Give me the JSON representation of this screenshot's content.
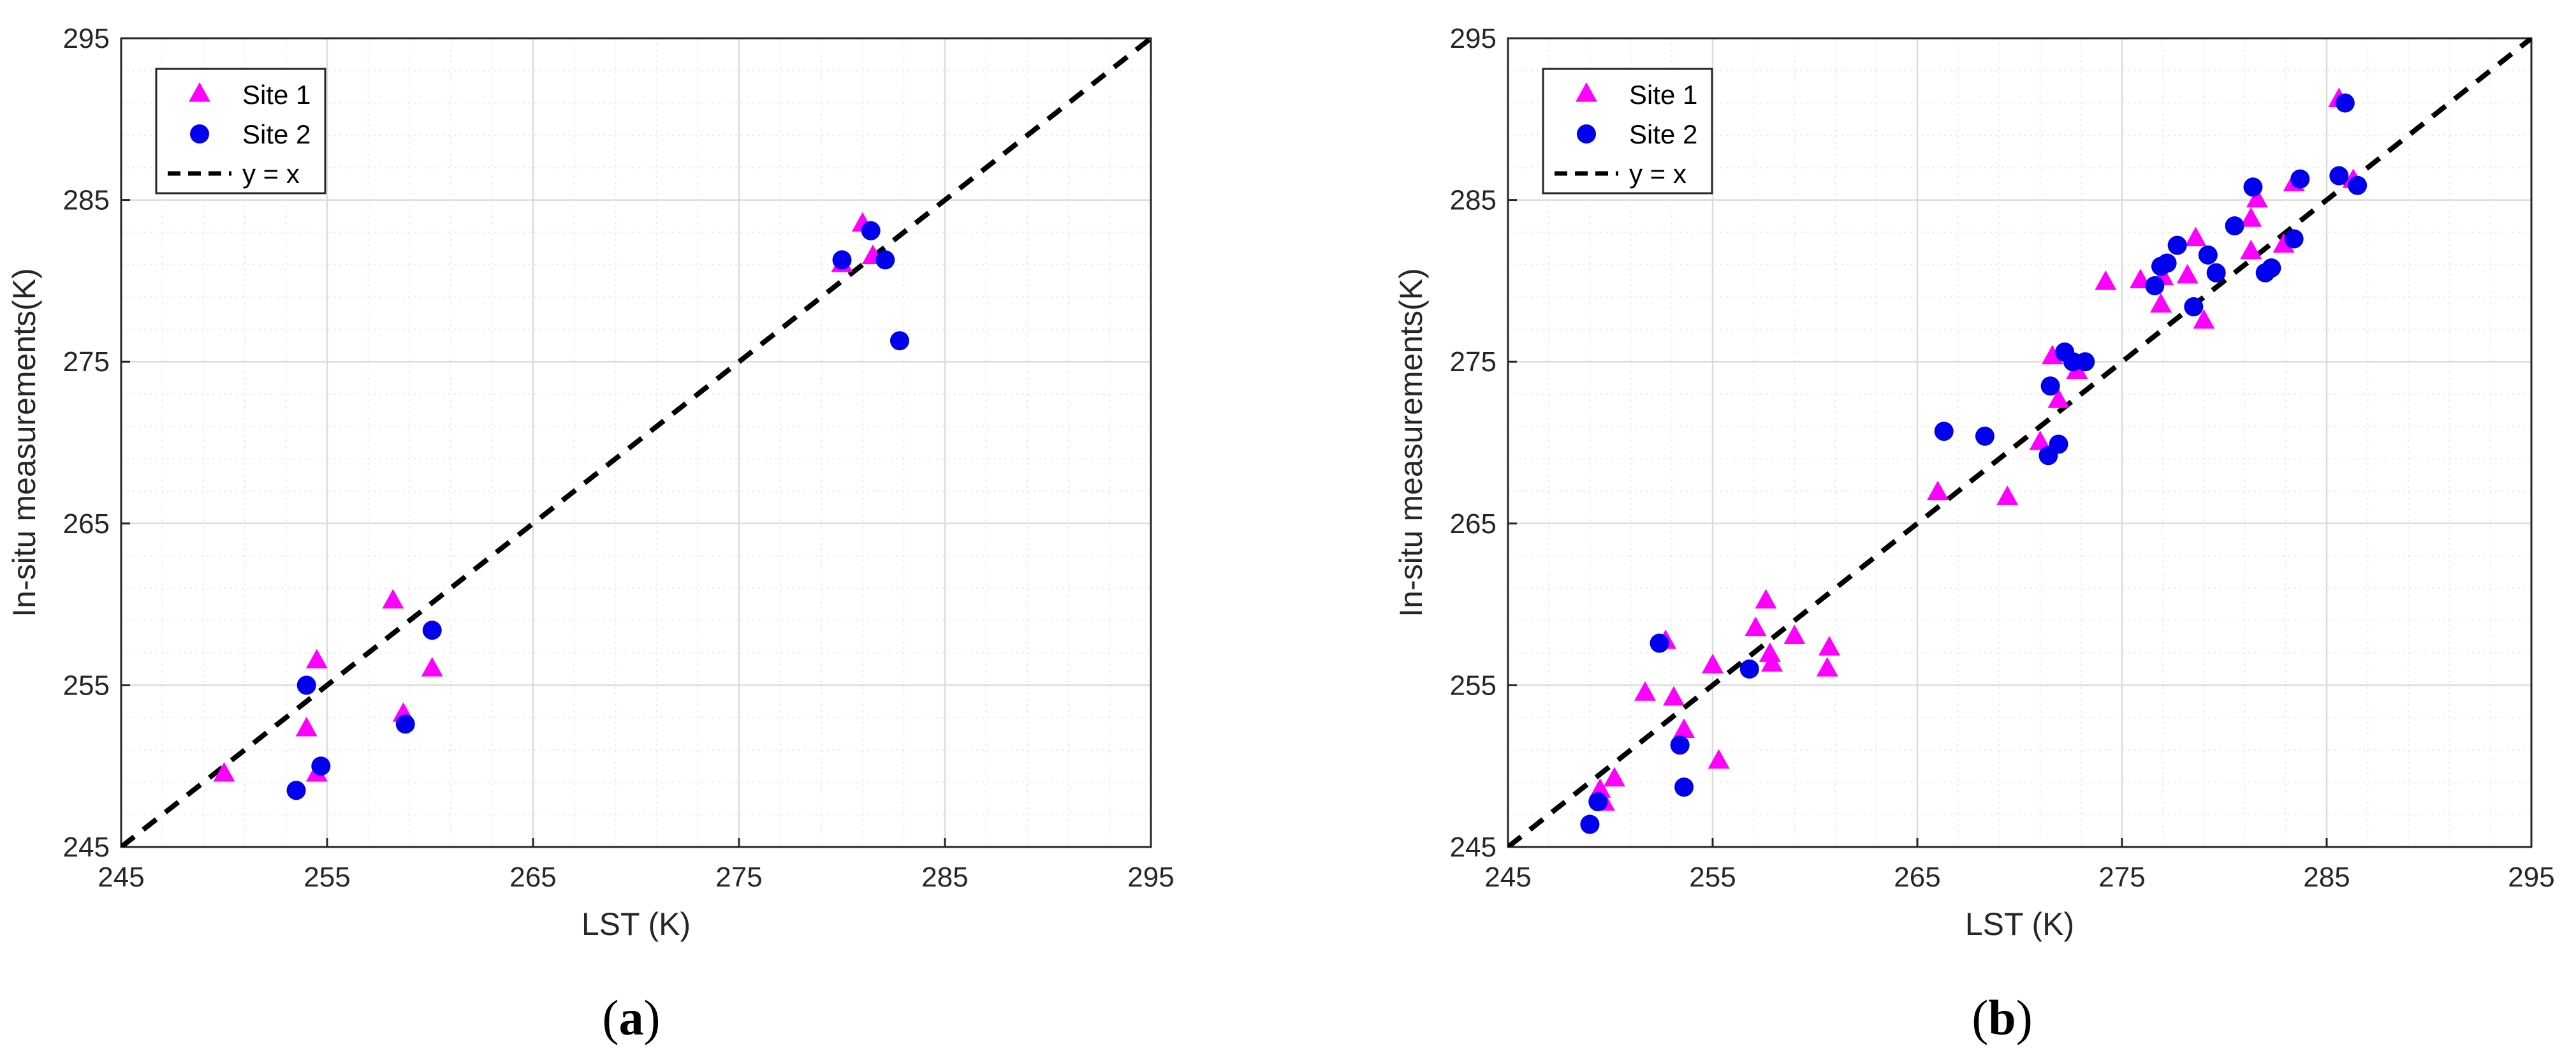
{
  "colors": {
    "site1": "#ff00ff",
    "site2": "#0000ee",
    "identity_line": "#000000",
    "grid": "#dcdcdc"
  },
  "chart_data": [
    {
      "type": "scatter",
      "panel_label": [
        "(",
        "a",
        ")"
      ],
      "xlabel": "LST (K)",
      "ylabel": "In-situ measurements(K)",
      "xlim": [
        245,
        295
      ],
      "ylim": [
        245,
        295
      ],
      "ticks": [
        245,
        255,
        265,
        275,
        285,
        295
      ],
      "grid": "on (major and minor)",
      "legend_placement": "top-left",
      "series": [
        {
          "name": "Site 1",
          "marker": "triangle",
          "color": "#ff00ff",
          "points": [
            [
              250.0,
              249.5
            ],
            [
              254.0,
              252.3
            ],
            [
              254.5,
              256.5
            ],
            [
              254.5,
              249.5
            ],
            [
              258.2,
              260.2
            ],
            [
              258.7,
              253.2
            ],
            [
              260.1,
              256.0
            ],
            [
              280.0,
              281.0
            ],
            [
              281.0,
              283.5
            ],
            [
              281.5,
              281.5
            ]
          ]
        },
        {
          "name": "Site 2",
          "marker": "circle",
          "color": "#0000ee",
          "points": [
            [
              253.5,
              248.5
            ],
            [
              254.0,
              255.0
            ],
            [
              254.7,
              250.0
            ],
            [
              258.8,
              252.6
            ],
            [
              260.1,
              258.4
            ],
            [
              280.0,
              281.3
            ],
            [
              281.4,
              283.1
            ],
            [
              282.1,
              281.3
            ],
            [
              282.8,
              276.3
            ]
          ]
        },
        {
          "name": "y = x",
          "marker": "dashed-line",
          "color": "#000000",
          "points": [
            [
              245,
              245
            ],
            [
              295,
              295
            ]
          ]
        }
      ]
    },
    {
      "type": "scatter",
      "panel_label": [
        "(",
        "b",
        ")"
      ],
      "xlabel": "LST (K)",
      "ylabel": "In-situ measurements(K)",
      "xlim": [
        245,
        295
      ],
      "ylim": [
        245,
        295
      ],
      "ticks": [
        245,
        255,
        265,
        275,
        285,
        295
      ],
      "grid": "on (major and minor)",
      "legend_placement": "top-left",
      "series": [
        {
          "name": "Site 1",
          "marker": "triangle",
          "color": "#ff00ff",
          "points": [
            [
              249.5,
              248.5
            ],
            [
              249.7,
              247.7
            ],
            [
              250.2,
              249.2
            ],
            [
              251.7,
              254.5
            ],
            [
              252.7,
              257.7
            ],
            [
              253.1,
              254.2
            ],
            [
              253.6,
              252.2
            ],
            [
              255.0,
              256.2
            ],
            [
              255.3,
              250.3
            ],
            [
              257.1,
              258.5
            ],
            [
              257.6,
              260.2
            ],
            [
              257.8,
              256.9
            ],
            [
              257.9,
              256.3
            ],
            [
              259.0,
              258.0
            ],
            [
              260.7,
              257.3
            ],
            [
              260.6,
              256.0
            ],
            [
              266.0,
              266.9
            ],
            [
              269.4,
              266.6
            ],
            [
              271.0,
              270.0
            ],
            [
              271.6,
              275.3
            ],
            [
              271.9,
              272.6
            ],
            [
              272.8,
              274.4
            ],
            [
              274.2,
              279.9
            ],
            [
              275.9,
              280.0
            ],
            [
              276.9,
              278.5
            ],
            [
              277.0,
              280.2
            ],
            [
              278.2,
              280.3
            ],
            [
              278.6,
              282.6
            ],
            [
              279.0,
              277.5
            ],
            [
              281.3,
              283.8
            ],
            [
              281.3,
              281.8
            ],
            [
              281.6,
              285.0
            ],
            [
              282.9,
              282.2
            ],
            [
              283.4,
              286.0
            ],
            [
              285.6,
              291.2
            ],
            [
              286.3,
              286.2
            ]
          ]
        },
        {
          "name": "Site 2",
          "marker": "circle",
          "color": "#0000ee",
          "points": [
            [
              249.0,
              246.4
            ],
            [
              249.4,
              247.8
            ],
            [
              252.4,
              257.6
            ],
            [
              253.4,
              251.3
            ],
            [
              253.6,
              248.7
            ],
            [
              256.8,
              256.0
            ],
            [
              266.3,
              270.7
            ],
            [
              268.3,
              270.4
            ],
            [
              271.4,
              269.2
            ],
            [
              271.5,
              273.5
            ],
            [
              271.9,
              269.9
            ],
            [
              272.2,
              275.6
            ],
            [
              272.6,
              275.0
            ],
            [
              273.2,
              275.0
            ],
            [
              276.6,
              279.7
            ],
            [
              276.9,
              280.9
            ],
            [
              277.2,
              281.1
            ],
            [
              277.7,
              282.2
            ],
            [
              278.5,
              278.4
            ],
            [
              279.2,
              281.6
            ],
            [
              279.6,
              280.5
            ],
            [
              280.5,
              283.4
            ],
            [
              281.4,
              285.8
            ],
            [
              282.0,
              280.5
            ],
            [
              282.3,
              280.8
            ],
            [
              283.4,
              282.6
            ],
            [
              283.7,
              286.3
            ],
            [
              285.6,
              286.5
            ],
            [
              285.9,
              291.0
            ],
            [
              286.5,
              285.9
            ]
          ]
        },
        {
          "name": "y = x",
          "marker": "dashed-line",
          "color": "#000000",
          "points": [
            [
              245,
              245
            ],
            [
              295,
              295
            ]
          ]
        }
      ]
    }
  ]
}
